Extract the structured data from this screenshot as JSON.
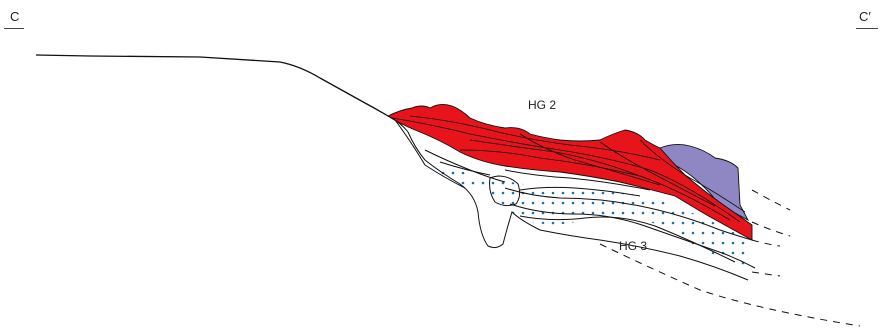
{
  "section": {
    "start_label": "C",
    "end_label": "C′"
  },
  "units": {
    "upper": "HG 2",
    "lower": "HG 3"
  },
  "colors": {
    "hg2_fill": "#e8141b",
    "purple_fill": "#8e87c4",
    "dots": "#1f6fa3",
    "line": "#111111"
  }
}
